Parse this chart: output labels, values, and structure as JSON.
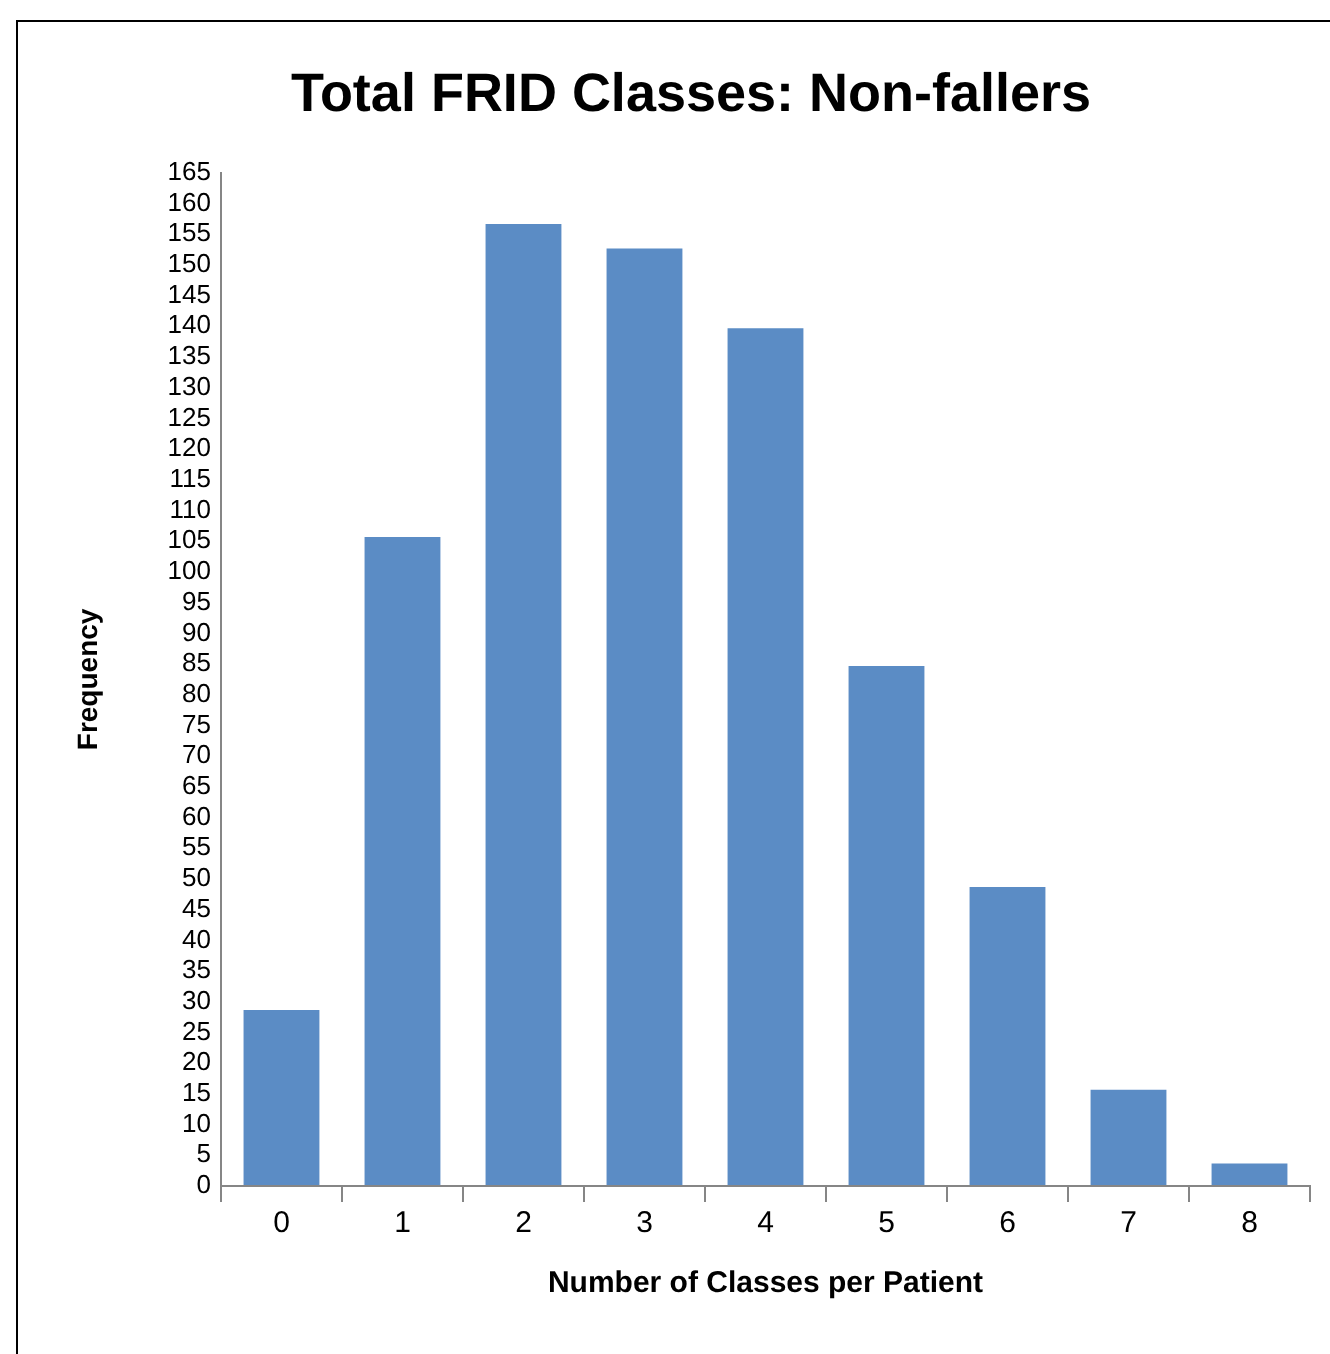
{
  "chart_data": {
    "type": "bar",
    "title": "Total FRID Classes: Non-fallers",
    "xlabel": "Number of Classes per Patient",
    "ylabel": "Frequency",
    "categories": [
      "0",
      "1",
      "2",
      "3",
      "4",
      "5",
      "6",
      "7",
      "8"
    ],
    "values": [
      29,
      106,
      157,
      153,
      140,
      85,
      49,
      16,
      4
    ],
    "color": "#5b8cc5",
    "ylim": [
      0,
      165
    ],
    "yticks": [
      0,
      5,
      10,
      15,
      20,
      25,
      30,
      35,
      40,
      45,
      50,
      55,
      60,
      65,
      70,
      75,
      80,
      85,
      90,
      95,
      100,
      105,
      110,
      115,
      120,
      125,
      130,
      135,
      140,
      145,
      150,
      155,
      160,
      165
    ]
  }
}
